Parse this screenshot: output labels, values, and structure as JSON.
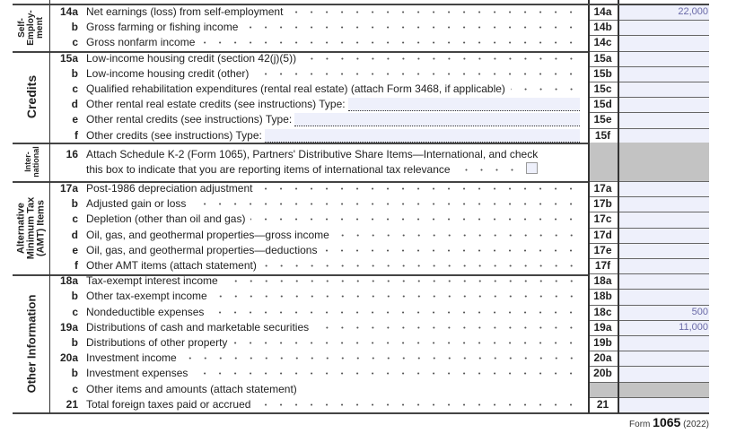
{
  "sections": [
    {
      "label": "Self-\nEmploy-\nment"
    },
    {
      "label": "Credits"
    },
    {
      "label": "Inter-\nnational"
    },
    {
      "label": "Alternative\nMinimum Tax\n(AMT) Items"
    },
    {
      "label": "Other Information"
    }
  ],
  "rows": [
    {
      "num": "14a",
      "text": "Net earnings (loss) from self-employment",
      "line": "14a",
      "amount": "22,000"
    },
    {
      "num": "b",
      "text": "Gross farming or fishing income",
      "line": "14b",
      "amount": ""
    },
    {
      "num": "c",
      "text": "Gross nonfarm income",
      "line": "14c",
      "amount": ""
    },
    {
      "num": "15a",
      "text": "Low-income housing credit (section 42(j)(5))",
      "line": "15a",
      "amount": ""
    },
    {
      "num": "b",
      "text": "Low-income housing credit (other)",
      "line": "15b",
      "amount": ""
    },
    {
      "num": "c",
      "text": "Qualified rehabilitation expenditures (rental real estate) (attach Form 3468, if applicable)",
      "line": "15c",
      "amount": ""
    },
    {
      "num": "d",
      "text": "Other rental real estate credits (see instructions)   Type:",
      "line": "15d",
      "amount": "",
      "type": true
    },
    {
      "num": "e",
      "text": "Other rental credits (see instructions)   Type:",
      "line": "15e",
      "amount": "",
      "type": true
    },
    {
      "num": "f",
      "text": "Other credits (see instructions)  Type:",
      "line": "15f",
      "amount": "",
      "type": true
    },
    {
      "num": "17a",
      "text": "Post-1986 depreciation adjustment",
      "line": "17a",
      "amount": ""
    },
    {
      "num": "b",
      "text": "Adjusted gain or loss",
      "line": "17b",
      "amount": ""
    },
    {
      "num": "c",
      "text": "Depletion (other than oil and gas)",
      "line": "17c",
      "amount": ""
    },
    {
      "num": "d",
      "text": "Oil, gas, and geothermal properties—gross income",
      "line": "17d",
      "amount": ""
    },
    {
      "num": "e",
      "text": "Oil, gas, and geothermal properties—deductions",
      "line": "17e",
      "amount": ""
    },
    {
      "num": "f",
      "text": "Other AMT items (attach statement)",
      "line": "17f",
      "amount": ""
    },
    {
      "num": "18a",
      "text": "Tax-exempt interest income",
      "line": "18a",
      "amount": ""
    },
    {
      "num": "b",
      "text": "Other tax-exempt income",
      "line": "18b",
      "amount": ""
    },
    {
      "num": "c",
      "text": "Nondeductible expenses",
      "line": "18c",
      "amount": "500"
    },
    {
      "num": "19a",
      "text": "Distributions of cash and marketable securities",
      "line": "19a",
      "amount": "11,000"
    },
    {
      "num": "b",
      "text": "Distributions of other property",
      "line": "19b",
      "amount": ""
    },
    {
      "num": "20a",
      "text": "Investment income",
      "line": "20a",
      "amount": ""
    },
    {
      "num": "b",
      "text": "Investment expenses",
      "line": "20b",
      "amount": ""
    },
    {
      "num": "c",
      "text": "Other items and amounts (attach statement)",
      "line": "",
      "amount": "",
      "nodots": true,
      "shaded": true
    },
    {
      "num": "21",
      "text": "Total foreign taxes paid or accrued",
      "line": "21",
      "amount": ""
    }
  ],
  "line16": {
    "num": "16",
    "text1": "Attach Schedule K-2 (Form 1065), Partners' Distributive Share Items—International, and check",
    "text2": "this box to indicate that you are reporting items of international tax relevance",
    "checked": false
  },
  "footer": {
    "prefix": "Form",
    "form": "1065",
    "year": "(2022)"
  },
  "colors": {
    "field_fill": "#eef0fb",
    "shaded": "#c3c3c3",
    "amount_text": "#6a6aa8"
  }
}
